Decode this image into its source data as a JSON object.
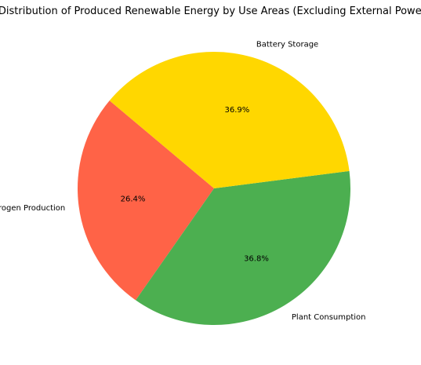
{
  "chart_data": {
    "type": "pie",
    "title": "Distribution of Produced Renewable Energy by Use Areas (Excluding External Power)",
    "startangle_deg": 140,
    "direction": "counterclockwise",
    "slices": [
      {
        "label": "Hydrogen Production",
        "value": 26.4,
        "pct_label": "26.4%",
        "color": "#FF6347"
      },
      {
        "label": "Plant Consumption",
        "value": 36.8,
        "pct_label": "36.8%",
        "color": "#4CAF50"
      },
      {
        "label": "Battery Storage",
        "value": 36.9,
        "pct_label": "36.9%",
        "color": "#FFD700"
      }
    ]
  }
}
